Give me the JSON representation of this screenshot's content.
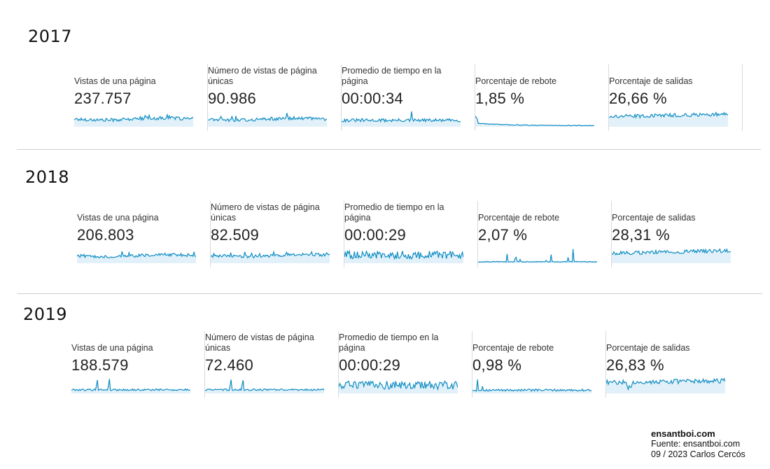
{
  "years": [
    {
      "label": "2017",
      "metrics": [
        {
          "label": "Vistas de una página",
          "value": "237.757",
          "spark": "views"
        },
        {
          "label": "Número de vistas de página únicas",
          "value": "90.986",
          "spark": "views"
        },
        {
          "label": "Promedio de tiempo en la página",
          "value": "00:00:34",
          "spark": "time_flat"
        },
        {
          "label": "Porcentaje de rebote",
          "value": "1,85 %",
          "spark": "bounce_decay"
        },
        {
          "label": "Porcentaje de salidas",
          "value": "26,66 %",
          "spark": "exits"
        }
      ]
    },
    {
      "label": "2018",
      "metrics": [
        {
          "label": "Vistas de una página",
          "value": "206.803",
          "spark": "views"
        },
        {
          "label": "Número de vistas de página únicas",
          "value": "82.509",
          "spark": "views"
        },
        {
          "label": "Promedio de tiempo en la página",
          "value": "00:00:29",
          "spark": "time_noisy"
        },
        {
          "label": "Porcentaje de rebote",
          "value": "2,07 %",
          "spark": "bounce_spiky"
        },
        {
          "label": "Porcentaje de salidas",
          "value": "28,31 %",
          "spark": "exits"
        }
      ]
    },
    {
      "label": "2019",
      "metrics": [
        {
          "label": "Vistas de una página",
          "value": "188.579",
          "spark": "views_peaks"
        },
        {
          "label": "Número de vistas de página únicas",
          "value": "72.460",
          "spark": "views_peaks"
        },
        {
          "label": "Promedio de tiempo en la página",
          "value": "00:00:29",
          "spark": "time_noisy"
        },
        {
          "label": "Porcentaje de rebote",
          "value": "0,98 %",
          "spark": "bounce_low"
        },
        {
          "label": "Porcentaje de salidas",
          "value": "26,83 %",
          "spark": "exits_dip"
        }
      ]
    }
  ],
  "colors": {
    "line": "#0f8cc3",
    "fill": "#e2f1f9",
    "divider": "#cfcfcf"
  },
  "footer": {
    "site": "ensantboi.com",
    "source": "Fuente: ensantboi.com",
    "credit": "09 / 2023  Carlos Cercós"
  }
}
